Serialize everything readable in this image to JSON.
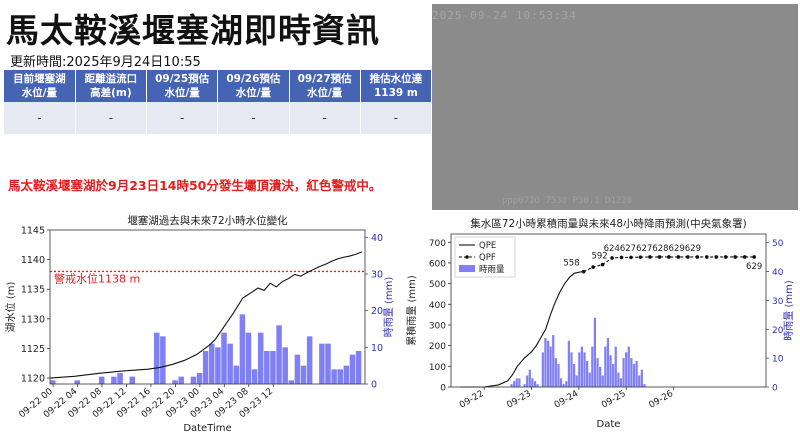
{
  "header": {
    "title": "馬太鞍溪堰塞湖即時資訊",
    "updated": "更新時間:2025年9月24日10:55"
  },
  "table": {
    "headers": [
      [
        "目前堰塞湖",
        "水位/量"
      ],
      [
        "距離溢流口",
        "高差(m)"
      ],
      [
        "09/25預估",
        "水位/量"
      ],
      [
        "09/26預估",
        "水位/量"
      ],
      [
        "09/27預估",
        "水位/量"
      ],
      [
        "推估水位達",
        "1139 m"
      ]
    ],
    "values": [
      "-",
      "-",
      "-",
      "-",
      "-",
      "-"
    ]
  },
  "camera": {
    "timestamp": "2025-09-24 10:53:34",
    "bottom_text": "ppp0720   7530   P30.1  D1220"
  },
  "warning": "馬太鞍溪堰塞湖於9月23日14時50分發生壩頂潰決，紅色警戒中。",
  "chart_data": [
    {
      "type": "line",
      "title": "堰塞湖過去與未來72小時水位變化",
      "xlabel": "DateTime",
      "ylabel": "湖水位 (m)",
      "y2label": "時雨量 (mm)",
      "ylim": [
        1119,
        1145
      ],
      "y2lim": [
        0,
        42
      ],
      "yticks": [
        1120,
        1125,
        1130,
        1135,
        1140,
        1145
      ],
      "y2ticks": [
        0,
        10,
        20,
        30,
        40
      ],
      "xticks": [
        "09-22 00",
        "09-22 04",
        "09-22 08",
        "09-22 12",
        "09-22 16",
        "09-22 20",
        "09-23 00",
        "09-23 04",
        "09-23 08",
        "09-23 12"
      ],
      "threshold": {
        "value": 1138,
        "label": "警戒水位1138 m",
        "color": "#e02020"
      },
      "water_level": {
        "x_hours": [
          0,
          4,
          8,
          12,
          16,
          18,
          20,
          22,
          24,
          26,
          27,
          28,
          30,
          31.5,
          33,
          34,
          35,
          36,
          37,
          38,
          39,
          40,
          41,
          42,
          43,
          44,
          45,
          46,
          47,
          48,
          49,
          50,
          51
        ],
        "values": [
          1120,
          1120.3,
          1120.8,
          1121.2,
          1121.5,
          1121.8,
          1122.3,
          1123,
          1124,
          1125.5,
          1126.5,
          1128,
          1131,
          1133.5,
          1134.5,
          1135.2,
          1134.8,
          1136,
          1135.4,
          1136.3,
          1136.8,
          1137.5,
          1137.2,
          1137.8,
          1138.3,
          1138.8,
          1139.2,
          1139.7,
          1140.1,
          1140.4,
          1140.6,
          1140.9,
          1141.3
        ]
      },
      "rain": {
        "x_hours": [
          0,
          1,
          2,
          3,
          4,
          5,
          6,
          7,
          8,
          9,
          10,
          11,
          12,
          13,
          14,
          15,
          16,
          17,
          18,
          19,
          20,
          21,
          22,
          23,
          24,
          25,
          26,
          27,
          28,
          29,
          30,
          31,
          32,
          33,
          34,
          35,
          36,
          37,
          38,
          39,
          40,
          41,
          42,
          43,
          44,
          45,
          46,
          47,
          48,
          49,
          50
        ],
        "values": [
          1,
          0,
          0,
          0,
          1,
          0,
          0,
          0,
          2,
          0,
          2,
          3,
          0,
          2,
          0,
          0,
          0,
          14,
          13,
          0,
          1,
          2,
          0,
          2,
          3,
          9,
          11,
          10,
          14,
          11,
          5,
          19,
          14,
          4,
          14,
          9,
          9,
          16,
          10,
          1,
          8,
          5,
          13,
          0,
          11,
          11,
          4,
          4,
          5,
          8,
          9
        ]
      }
    },
    {
      "type": "line",
      "title": "集水區72小時累積雨量與未來48小時降雨預測(中央氣象署)",
      "xlabel": "Date",
      "ylabel": "累積雨量 (mm)",
      "y2label": "時雨量 (mm)",
      "ylim": [
        0,
        740
      ],
      "y2lim": [
        0,
        53
      ],
      "yticks": [
        0,
        100,
        200,
        300,
        400,
        500,
        600,
        700
      ],
      "y2ticks": [
        0,
        10,
        20,
        30,
        40,
        50
      ],
      "xticks": [
        "09-22",
        "09-23",
        "09-24",
        "09-25",
        "09-26"
      ],
      "legend": [
        "QPE",
        "QPF",
        "時雨量"
      ],
      "legend_position": "top-left",
      "qpe": {
        "x_days": [
          0,
          0.5,
          0.8,
          1.0,
          1.1,
          1.2,
          1.35,
          1.5,
          1.6,
          1.7,
          1.8,
          1.9,
          2.0,
          2.1,
          2.2,
          2.3,
          2.4,
          2.5,
          2.55,
          2.6
        ],
        "values": [
          0,
          0,
          10,
          30,
          60,
          100,
          140,
          170,
          200,
          240,
          280,
          350,
          410,
          460,
          500,
          530,
          550,
          555,
          557,
          558
        ]
      },
      "qpf": {
        "x_days": [
          2.6,
          2.8,
          3.0,
          3.2,
          3.4,
          3.6,
          3.8,
          4.0,
          4.2,
          4.4,
          4.6,
          4.8,
          5.0,
          5.2,
          5.4,
          5.6,
          5.8,
          6.0,
          6.2
        ],
        "values": [
          558,
          580,
          592,
          624,
          627,
          627,
          628,
          629,
          629,
          629,
          629,
          629,
          629,
          629,
          629,
          629,
          629,
          629,
          629
        ]
      },
      "point_labels": [
        "558",
        "592",
        "624627627628629629",
        "629"
      ],
      "rain_day_start": 1.0,
      "rain_step_days": 0.055,
      "rain": [
        0,
        1,
        2,
        3,
        3,
        0,
        1,
        4,
        6,
        3,
        2,
        1,
        0,
        12,
        17,
        16,
        14,
        18,
        10,
        8,
        3,
        1,
        2,
        16,
        12,
        8,
        4,
        12,
        14,
        12,
        9,
        5,
        14,
        24,
        10,
        7,
        4,
        14,
        17,
        11,
        8,
        14,
        5,
        3,
        10,
        12,
        14,
        10,
        8,
        9,
        4,
        6,
        1
      ]
    }
  ]
}
